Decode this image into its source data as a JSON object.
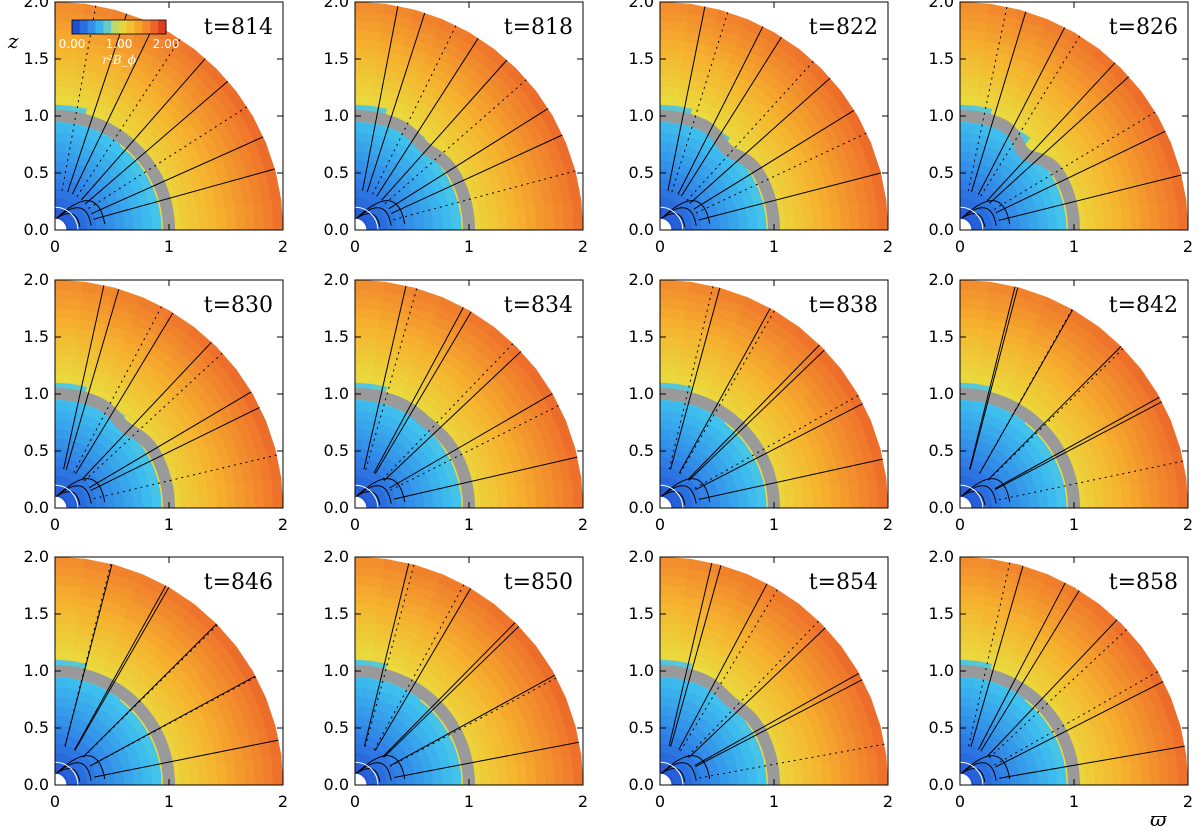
{
  "chart_data": {
    "type": "heatmap",
    "panels": [
      {
        "time_label": "t=814",
        "t": 814,
        "surface_bump": 0
      },
      {
        "time_label": "t=818",
        "t": 818,
        "surface_bump": 0.05
      },
      {
        "time_label": "t=822",
        "t": 822,
        "surface_bump": 0.08
      },
      {
        "time_label": "t=826",
        "t": 826,
        "surface_bump": 0.12
      },
      {
        "time_label": "t=830",
        "t": 830,
        "surface_bump": 0.06
      },
      {
        "time_label": "t=834",
        "t": 834,
        "surface_bump": 0.02
      },
      {
        "time_label": "t=838",
        "t": 838,
        "surface_bump": 0
      },
      {
        "time_label": "t=842",
        "t": 842,
        "surface_bump": 0
      },
      {
        "time_label": "t=846",
        "t": 846,
        "surface_bump": 0
      },
      {
        "time_label": "t=850",
        "t": 850,
        "surface_bump": 0
      },
      {
        "time_label": "t=854",
        "t": 854,
        "surface_bump": 0.04
      },
      {
        "time_label": "t=858",
        "t": 858,
        "surface_bump": 0
      }
    ],
    "x_ticks": [
      "0",
      "1",
      "2"
    ],
    "y_ticks": [
      "0.0",
      "0.5",
      "1.0",
      "1.5",
      "2.0"
    ],
    "xlim": [
      0,
      2
    ],
    "ylim": [
      0,
      2
    ],
    "xlabel": "ϖ",
    "ylabel": "z",
    "colorbar": {
      "title": "r²B_ϕ",
      "tick_labels": [
        "0.00",
        "1.00",
        "2.00"
      ],
      "range": [
        0,
        2
      ],
      "colors": [
        "#1e3fc8",
        "#2f7fe6",
        "#3fc3ef",
        "#e8e040",
        "#f6b22e",
        "#f0782c",
        "#d62a1c"
      ]
    },
    "contour_lines": "solid = positive, dotted = negative field lines",
    "inner_radius": 0.1,
    "surface_radius": 1.0,
    "outer_radius": 2.0,
    "colors": {
      "surface_band": "#9a9a9a",
      "inner_boundary": "#ffffff"
    }
  }
}
